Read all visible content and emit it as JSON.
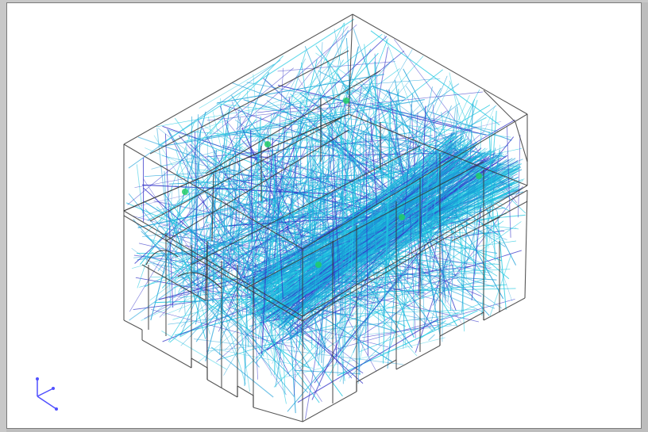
{
  "colors": {
    "window_bg": "#c8c8c8",
    "viewport_bg": "#ffffff",
    "wireframe": "#3a3a3a",
    "ray_primary": "#1a9fd8",
    "ray_secondary": "#20c8e0",
    "ray_dark": "#3434c8",
    "receiver": "#22cc66",
    "axis": "#5050ff"
  },
  "scene": {
    "model": "building-wireframe",
    "view": "isometric",
    "receivers_count": 6
  },
  "icons": {
    "axis_triad": "xyz-axis-icon"
  }
}
